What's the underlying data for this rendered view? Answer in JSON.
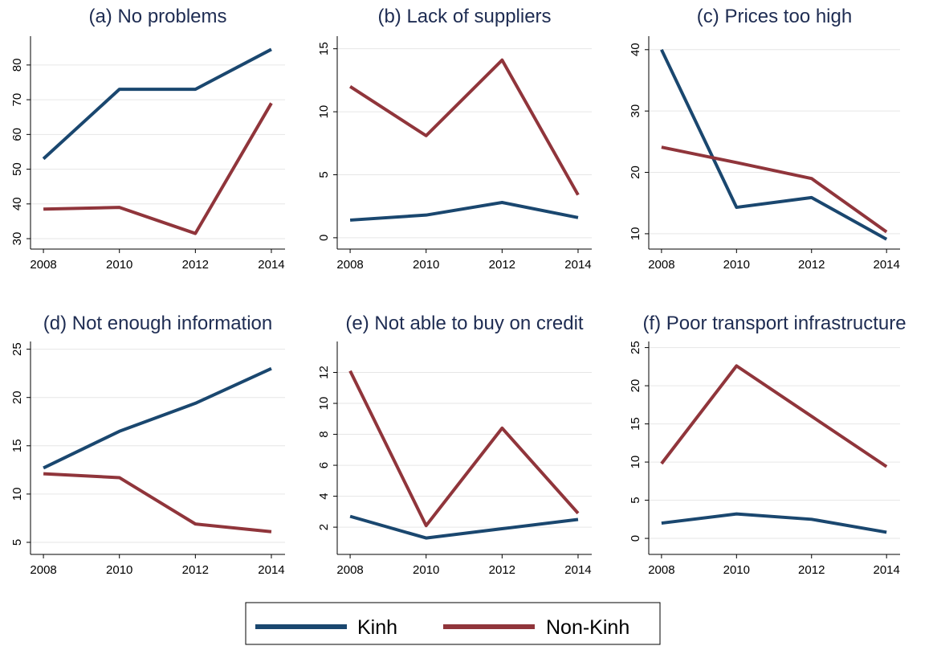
{
  "chart_data": [
    {
      "type": "line",
      "title": "(a) No problems",
      "x": [
        2008,
        2010,
        2012,
        2014
      ],
      "xlim": [
        2007.66,
        2014.36
      ],
      "xticks": [
        2008,
        2010,
        2012,
        2014
      ],
      "ylim": [
        27,
        88.3
      ],
      "yticks": [
        30,
        40,
        50,
        60,
        70,
        80
      ],
      "grid": true,
      "series": [
        {
          "name": "Kinh",
          "color": "#1a476f",
          "values": [
            53,
            73,
            73,
            84.5
          ]
        },
        {
          "name": "Non-Kinh",
          "color": "#90353b",
          "values": [
            38.5,
            39,
            31.5,
            69
          ]
        }
      ]
    },
    {
      "type": "line",
      "title": "(b) Lack of suppliers",
      "x": [
        2008,
        2010,
        2012,
        2014
      ],
      "xlim": [
        2007.66,
        2014.36
      ],
      "xticks": [
        2008,
        2010,
        2012,
        2014
      ],
      "ylim": [
        -0.9,
        16
      ],
      "yticks": [
        0,
        5,
        10,
        15
      ],
      "grid": true,
      "series": [
        {
          "name": "Kinh",
          "color": "#1a476f",
          "values": [
            1.4,
            1.8,
            2.8,
            1.6
          ]
        },
        {
          "name": "Non-Kinh",
          "color": "#90353b",
          "values": [
            12,
            8.1,
            14.1,
            3.4
          ]
        }
      ]
    },
    {
      "type": "line",
      "title": "(c) Prices too high",
      "x": [
        2008,
        2010,
        2012,
        2014
      ],
      "xlim": [
        2007.66,
        2014.36
      ],
      "xticks": [
        2008,
        2010,
        2012,
        2014
      ],
      "ylim": [
        7.5,
        42.2
      ],
      "yticks": [
        10,
        20,
        30,
        40
      ],
      "grid": true,
      "series": [
        {
          "name": "Kinh",
          "color": "#1a476f",
          "values": [
            40,
            14.3,
            15.9,
            9.1
          ]
        },
        {
          "name": "Non-Kinh",
          "color": "#90353b",
          "values": [
            24.1,
            21.6,
            19,
            10.3
          ]
        }
      ]
    },
    {
      "type": "line",
      "title": "(d) Not enough information",
      "x": [
        2008,
        2010,
        2012,
        2014
      ],
      "xlim": [
        2007.66,
        2014.36
      ],
      "xticks": [
        2008,
        2010,
        2012,
        2014
      ],
      "ylim": [
        3.75,
        25.8
      ],
      "yticks": [
        5,
        10,
        15,
        20,
        25
      ],
      "grid": true,
      "series": [
        {
          "name": "Kinh",
          "color": "#1a476f",
          "values": [
            12.7,
            16.5,
            19.4,
            23
          ]
        },
        {
          "name": "Non-Kinh",
          "color": "#90353b",
          "values": [
            12.1,
            11.7,
            6.9,
            6.1
          ]
        }
      ]
    },
    {
      "type": "line",
      "title": "(e) Not able to buy on credit",
      "x": [
        2008,
        2010,
        2012,
        2014
      ],
      "xlim": [
        2007.66,
        2014.36
      ],
      "xticks": [
        2008,
        2010,
        2012,
        2014
      ],
      "ylim": [
        0.24,
        14
      ],
      "yticks": [
        2,
        4,
        6,
        8,
        10,
        12
      ],
      "grid": true,
      "series": [
        {
          "name": "Kinh",
          "color": "#1a476f",
          "values": [
            2.7,
            1.3,
            1.9,
            2.5
          ]
        },
        {
          "name": "Non-Kinh",
          "color": "#90353b",
          "values": [
            12.1,
            2.1,
            8.4,
            2.9
          ]
        }
      ]
    },
    {
      "type": "line",
      "title": "(f) Poor transport infrastructure",
      "x": [
        2008,
        2010,
        2012,
        2014
      ],
      "xlim": [
        2007.66,
        2014.36
      ],
      "xticks": [
        2008,
        2010,
        2012,
        2014
      ],
      "ylim": [
        -2.1,
        25.8
      ],
      "yticks": [
        0,
        5,
        10,
        15,
        20,
        25
      ],
      "grid": true,
      "series": [
        {
          "name": "Kinh",
          "color": "#1a476f",
          "values": [
            2,
            3.2,
            2.5,
            0.8
          ]
        },
        {
          "name": "Non-Kinh",
          "color": "#90353b",
          "values": [
            9.8,
            22.6,
            16,
            9.4
          ]
        }
      ]
    }
  ]
}
